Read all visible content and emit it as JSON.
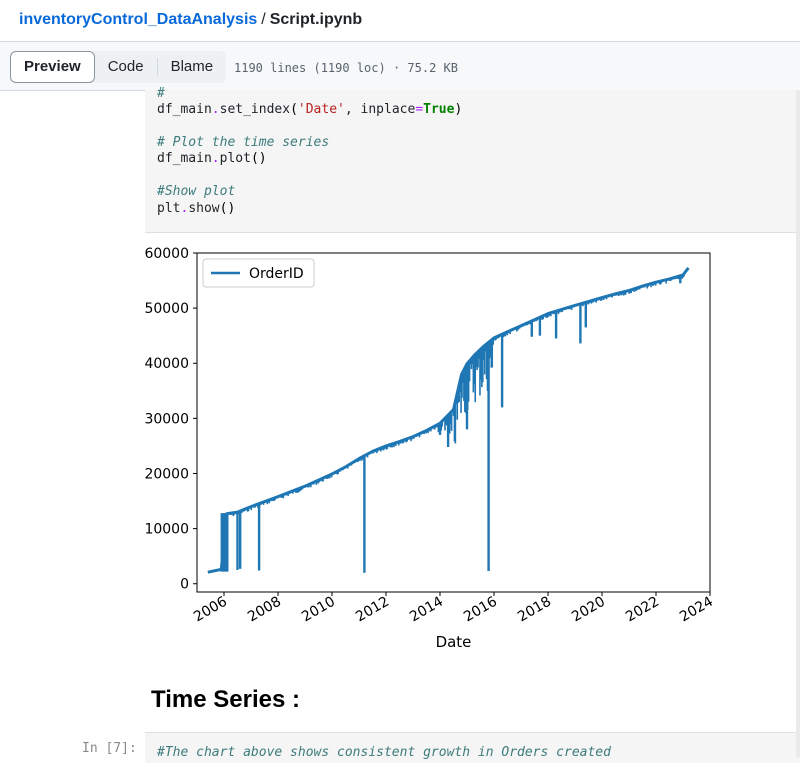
{
  "breadcrumb": {
    "repo": "inventoryControl_DataAnalysis",
    "separator": "/",
    "file": "Script.ipynb"
  },
  "toolbar": {
    "tabs": [
      "Preview",
      "Code",
      "Blame"
    ],
    "active_tab": "Preview",
    "file_info": "1190 lines (1190 loc) · 75.2 KB"
  },
  "code_cell": {
    "line0": "#",
    "line1": {
      "obj": "df_main",
      "method": "set_index",
      "arg_str": "'Date'",
      "kw": "inplace",
      "val": "True"
    },
    "line2": "# Plot the time series",
    "line3": {
      "obj": "df_main",
      "method": "plot"
    },
    "line4": "#Show plot",
    "line5": {
      "obj": "plt",
      "method": "show"
    }
  },
  "chart_data": {
    "type": "line",
    "xlabel": "Date",
    "ylabel": "",
    "x_ticks": [
      "2006",
      "2008",
      "2010",
      "2012",
      "2014",
      "2016",
      "2018",
      "2020",
      "2022",
      "2024"
    ],
    "y_ticks": [
      "0",
      "10000",
      "20000",
      "30000",
      "40000",
      "50000",
      "60000"
    ],
    "xlim": [
      2005.0,
      2024.0
    ],
    "ylim": [
      -1500,
      60000
    ],
    "legend": "upper-left",
    "grid": false,
    "series": [
      {
        "name": "OrderID",
        "color": "#1f77b4",
        "x": [
          2005.4,
          2005.9,
          2006.1,
          2006.5,
          2007.0,
          2008.0,
          2009.0,
          2010.0,
          2010.5,
          2011.0,
          2011.5,
          2012.0,
          2012.5,
          2013.0,
          2013.5,
          2014.0,
          2014.5,
          2014.8,
          2015.0,
          2015.3,
          2015.6,
          2016.0,
          2016.5,
          2017.0,
          2017.5,
          2018.0,
          2019.0,
          2020.0,
          2020.5,
          2021.0,
          2021.5,
          2022.0,
          2022.5,
          2023.0,
          2023.2
        ],
        "values": [
          2100,
          2600,
          12700,
          13000,
          14000,
          15800,
          17700,
          19900,
          21200,
          22700,
          24000,
          25000,
          25800,
          26700,
          27800,
          29100,
          31600,
          38000,
          39900,
          41600,
          43000,
          44600,
          45700,
          46800,
          47900,
          49000,
          50500,
          51900,
          52600,
          53200,
          54000,
          54700,
          55300,
          56000,
          57300
        ]
      }
    ],
    "dips": [
      {
        "x": 2006.1,
        "y": 2300
      },
      {
        "x": 2006.5,
        "y": 2500
      },
      {
        "x": 2006.6,
        "y": 2700
      },
      {
        "x": 2007.3,
        "y": 2400
      },
      {
        "x": 2011.2,
        "y": 2000
      },
      {
        "x": 2014.0,
        "y": 27000
      },
      {
        "x": 2014.3,
        "y": 24800
      },
      {
        "x": 2015.0,
        "y": 28000
      },
      {
        "x": 2015.8,
        "y": 2300
      },
      {
        "x": 2016.3,
        "y": 32000
      },
      {
        "x": 2017.4,
        "y": 44800
      },
      {
        "x": 2017.7,
        "y": 45000
      },
      {
        "x": 2018.3,
        "y": 44500
      },
      {
        "x": 2019.2,
        "y": 43600
      },
      {
        "x": 2019.4,
        "y": 46500
      },
      {
        "x": 2022.9,
        "y": 54500
      }
    ]
  },
  "markdown": {
    "heading": "Time Series :"
  },
  "next_cell": {
    "prompt": "In [7]:",
    "comment": "#The chart above shows consistent growth in Orders created"
  }
}
